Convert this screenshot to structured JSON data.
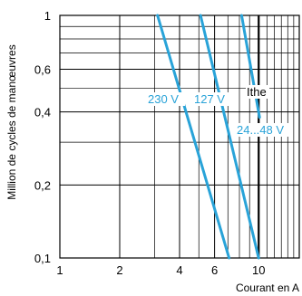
{
  "chart_data": {
    "type": "line",
    "xlabel": "Courant en A",
    "ylabel": "Million de cycles de manœuvres",
    "xscale": "log",
    "yscale": "log",
    "xlim": [
      1,
      16
    ],
    "ylim": [
      0.1,
      1
    ],
    "x_ticks": [
      {
        "value": 1,
        "label": "1"
      },
      {
        "value": 2,
        "label": "2"
      },
      {
        "value": 4,
        "label": "4"
      },
      {
        "value": 6,
        "label": "6"
      },
      {
        "value": 10,
        "label": "10"
      }
    ],
    "y_ticks": [
      {
        "value": 0.1,
        "label": "0,1"
      },
      {
        "value": 0.2,
        "label": "0,2"
      },
      {
        "value": 0.4,
        "label": "0,4"
      },
      {
        "value": 0.6,
        "label": "0,6"
      },
      {
        "value": 1,
        "label": "1"
      }
    ],
    "grid": true,
    "series": [
      {
        "name": "230 V",
        "points": [
          [
            3.1,
            1.0
          ],
          [
            7.1,
            0.1
          ]
        ]
      },
      {
        "name": "127 V",
        "points": [
          [
            5.1,
            1.0
          ],
          [
            10.0,
            0.1
          ]
        ]
      },
      {
        "name": "24...48 V",
        "points": [
          [
            8.2,
            1.0
          ],
          [
            10.1,
            0.38
          ]
        ]
      }
    ],
    "reference_line": {
      "name": "Ithe",
      "x": 10
    },
    "curve_color": "#29a3d8"
  }
}
